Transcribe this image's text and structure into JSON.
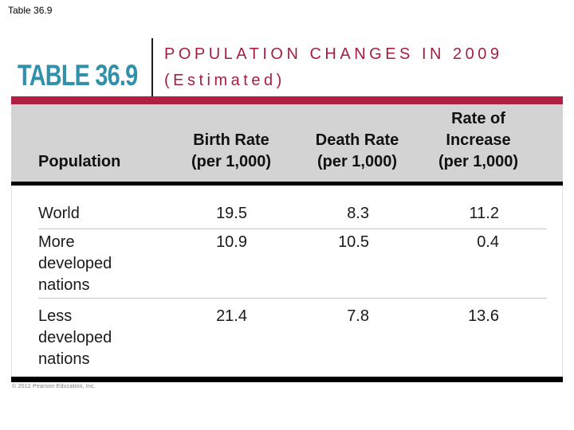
{
  "page": {
    "slide_label": "Table 36.9",
    "copyright": "© 2012 Pearson Education, Inc."
  },
  "header": {
    "table_label": "TABLE 36.9",
    "title_line1": "POPULATION CHANGES IN 2009",
    "title_line2": "(Estimated)"
  },
  "colors": {
    "accent_red": "#B01E41",
    "title_red": "#A51E41",
    "teal": "#3191AB",
    "header_bg": "#D3D3D3",
    "divider_gray": "#C6C6C6"
  },
  "chart_data": {
    "type": "table",
    "title": "POPULATION CHANGES IN 2009 (Estimated)",
    "columns": [
      "Population",
      "Birth Rate (per 1,000)",
      "Death Rate (per 1,000)",
      "Rate of Increase (per 1,000)"
    ],
    "rows": [
      {
        "population": "World",
        "birth_rate": 19.5,
        "death_rate": 8.3,
        "rate_of_increase": 11.2
      },
      {
        "population": "More developed nations",
        "birth_rate": 10.9,
        "death_rate": 10.5,
        "rate_of_increase": 0.4
      },
      {
        "population": "Less developed nations",
        "birth_rate": 21.4,
        "death_rate": 7.8,
        "rate_of_increase": 13.6
      }
    ]
  },
  "table": {
    "col_headers": [
      {
        "lines": [
          "Population"
        ]
      },
      {
        "lines": [
          "Birth Rate",
          "(per 1,000)"
        ]
      },
      {
        "lines": [
          "Death Rate",
          "(per 1,000)"
        ]
      },
      {
        "lines": [
          "Rate of",
          "Increase",
          "(per 1,000)"
        ]
      }
    ],
    "rows": [
      {
        "label_lines": [
          "World"
        ],
        "values": [
          "19.5",
          "8.3",
          "11.2"
        ]
      },
      {
        "label_lines": [
          "More",
          "developed",
          "nations"
        ],
        "values": [
          "10.9",
          "10.5",
          "0.4"
        ]
      },
      {
        "label_lines": [
          "Less",
          "developed",
          "nations"
        ],
        "values": [
          "21.4",
          "7.8",
          "13.6"
        ]
      }
    ]
  }
}
